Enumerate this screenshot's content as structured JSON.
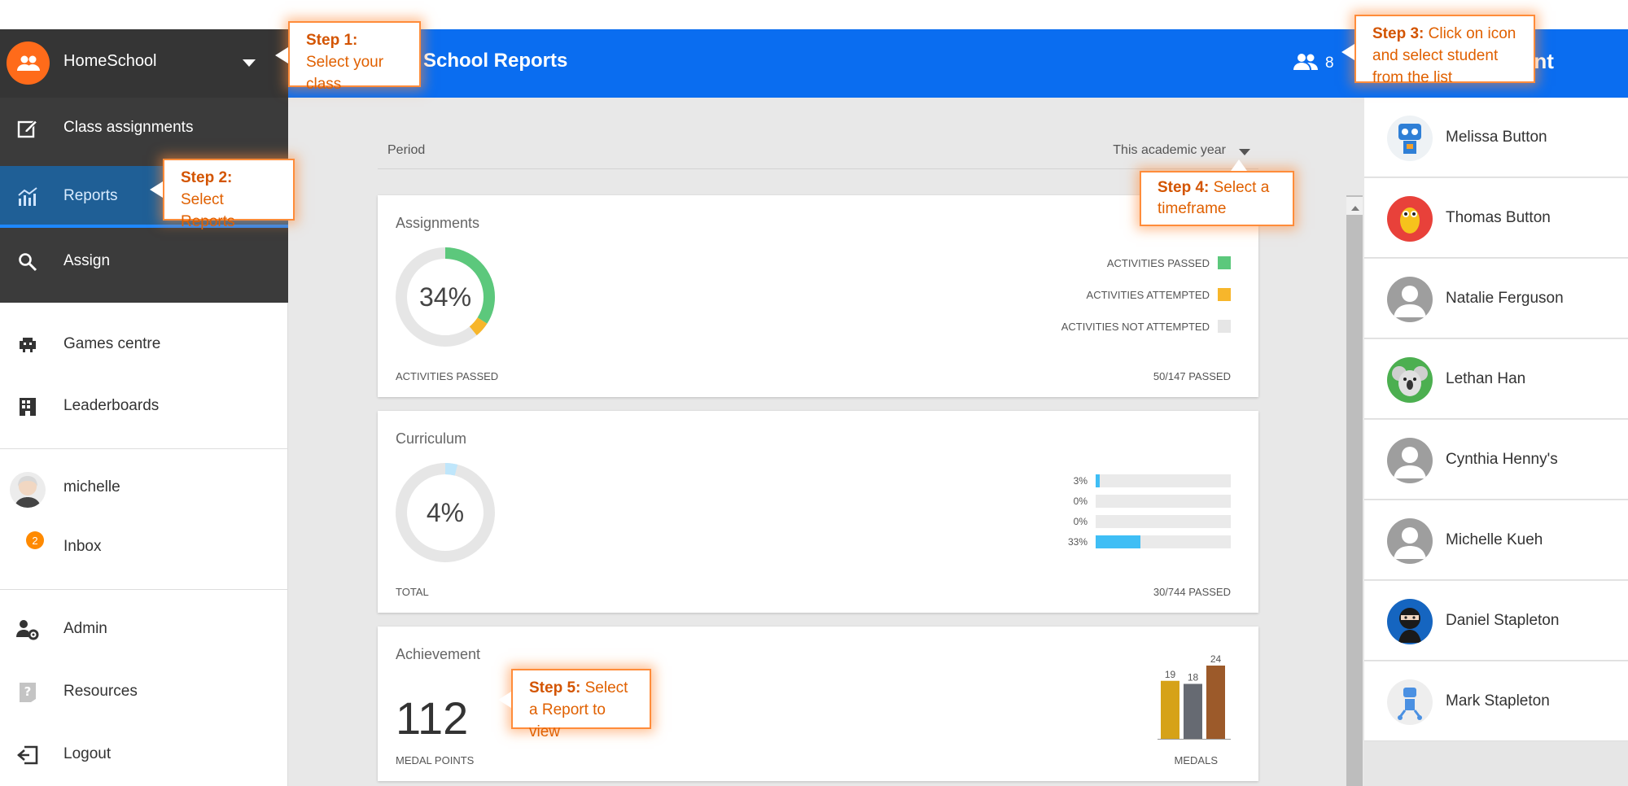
{
  "sidebar": {
    "class_name": "HomeSchool",
    "items": [
      {
        "label": "Class assignments"
      },
      {
        "label": "Reports"
      },
      {
        "label": "Assign"
      },
      {
        "label": "Games centre"
      },
      {
        "label": "Leaderboards"
      },
      {
        "label": "michelle"
      },
      {
        "label": "Inbox"
      },
      {
        "label": "Admin"
      },
      {
        "label": "Resources"
      },
      {
        "label": "Logout"
      }
    ],
    "inbox_count": "2"
  },
  "header": {
    "title": "School Reports",
    "student_count": "8",
    "right_title": "dent"
  },
  "period": {
    "label": "Period",
    "value": "This academic year"
  },
  "assignments": {
    "title": "Assignments",
    "percent": "34%",
    "passed_pct": 34,
    "attempted_pct": 5,
    "legend": [
      "ACTIVITIES PASSED",
      "ACTIVITIES ATTEMPTED",
      "ACTIVITIES NOT ATTEMPTED"
    ],
    "colors": [
      "#5cc87c",
      "#f7b62b",
      "#e6e6e6"
    ],
    "footer_left": "ACTIVITIES PASSED",
    "footer_right": "50/147 PASSED"
  },
  "curriculum": {
    "title": "Curriculum",
    "percent": "4%",
    "fill_pct": 4,
    "bars": [
      {
        "label": "3%",
        "value": 3
      },
      {
        "label": "0%",
        "value": 0
      },
      {
        "label": "0%",
        "value": 0
      },
      {
        "label": "33%",
        "value": 33
      }
    ],
    "footer_left": "TOTAL",
    "footer_right": "30/744 PASSED"
  },
  "achievement": {
    "title": "Achievement",
    "points": "112",
    "footer_left": "MEDAL POINTS",
    "footer_right": "MEDALS",
    "medals": [
      {
        "label": "19",
        "value": 19,
        "color": "#d6a218"
      },
      {
        "label": "18",
        "value": 18,
        "color": "#666a72"
      },
      {
        "label": "24",
        "value": 24,
        "color": "#9c5a2a"
      }
    ]
  },
  "students": [
    {
      "name": "Melissa Button"
    },
    {
      "name": "Thomas Button"
    },
    {
      "name": "Natalie Ferguson"
    },
    {
      "name": "Lethan Han"
    },
    {
      "name": "Cynthia Henny's"
    },
    {
      "name": "Michelle Kueh"
    },
    {
      "name": "Daniel Stapleton"
    },
    {
      "name": "Mark Stapleton"
    }
  ],
  "callouts": {
    "step1": {
      "bold": "Step 1:",
      "text": " Select your class"
    },
    "step2": {
      "bold": "Step 2:",
      "text": " Select Reports"
    },
    "step3": {
      "bold": "Step 3:",
      "text": " Click on icon and select student from the list"
    },
    "step4": {
      "bold": "Step 4:",
      "text": " Select a timeframe"
    },
    "step5": {
      "bold": "Step 5:",
      "text": " Select a Report to view"
    }
  }
}
